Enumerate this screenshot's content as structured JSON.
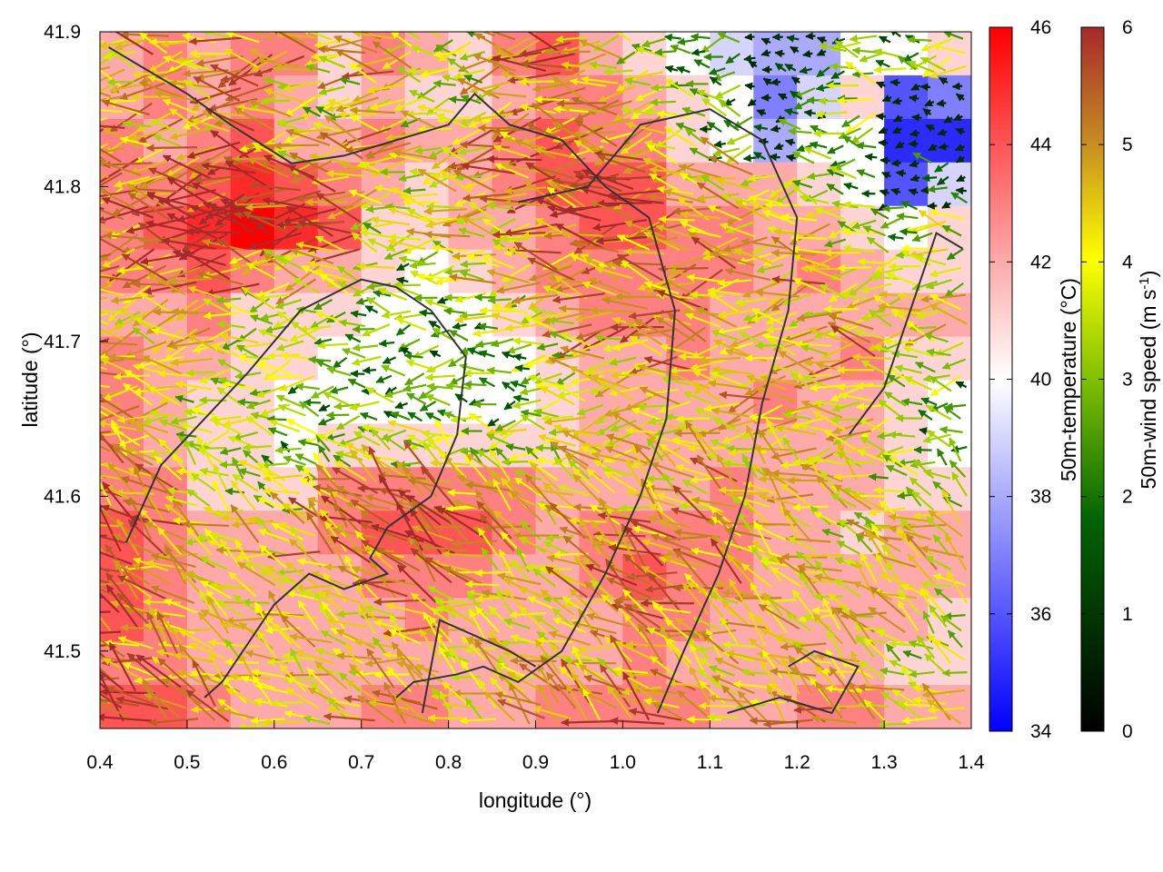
{
  "chart_data": {
    "type": "heatmap",
    "title": "",
    "xlabel": "longitude (°)",
    "ylabel": "latitude (°)",
    "xlim": [
      0.4,
      1.4
    ],
    "ylim": [
      41.45,
      41.9
    ],
    "xticks": [
      "0.4",
      "0.5",
      "0.6",
      "0.7",
      "0.8",
      "0.9",
      "1.0",
      "1.1",
      "1.2",
      "1.3",
      "1.4"
    ],
    "yticks": [
      "41.5",
      "41.6",
      "41.7",
      "41.8",
      "41.9"
    ],
    "grid": false,
    "temperature_colorbar": {
      "label": "50m-temperature (°C)",
      "range": [
        34,
        46
      ],
      "ticks": [
        "34",
        "36",
        "38",
        "40",
        "42",
        "44",
        "46"
      ],
      "colors": [
        "#0000ff",
        "#ffffff",
        "#ff0000"
      ]
    },
    "wind_colorbar": {
      "label_main": "50m-wind speed (m s",
      "label_sup": "-1",
      "label_end": ")",
      "range": [
        0,
        6
      ],
      "ticks": [
        "0",
        "1",
        "2",
        "3",
        "4",
        "5",
        "6"
      ],
      "colors": [
        "#000000",
        "#006400",
        "#80c000",
        "#ffff00",
        "#c89020",
        "#a52a2a"
      ]
    },
    "temperature_field": [
      [
        42,
        43,
        42,
        43,
        43,
        41,
        43,
        42,
        41,
        43,
        44,
        42,
        41,
        40,
        39,
        38,
        38,
        40,
        40,
        41
      ],
      [
        42,
        43,
        42,
        43,
        42,
        41,
        42,
        41,
        41,
        42,
        43,
        43,
        42,
        41,
        40,
        37,
        39,
        41,
        36,
        37
      ],
      [
        43,
        42,
        43,
        44,
        42,
        42,
        43,
        42,
        42,
        43,
        44,
        43,
        43,
        41,
        40,
        38,
        40,
        40,
        35,
        35
      ],
      [
        43,
        43,
        44,
        45,
        44,
        43,
        42,
        41,
        42,
        43,
        44,
        44,
        44,
        42,
        42,
        42,
        41,
        40,
        36,
        39
      ],
      [
        43,
        44,
        45,
        46,
        45,
        44,
        41,
        41,
        42,
        42,
        43,
        44,
        44,
        43,
        43,
        42,
        42,
        41,
        40,
        41
      ],
      [
        43,
        43,
        44,
        43,
        42,
        42,
        41,
        40,
        41,
        42,
        43,
        43,
        43,
        43,
        43,
        42,
        43,
        42,
        41,
        41
      ],
      [
        42,
        42,
        43,
        41,
        41,
        41,
        40,
        40,
        40,
        41,
        42,
        43,
        43,
        43,
        42,
        42,
        42,
        42,
        42,
        42
      ],
      [
        43,
        42,
        42,
        41,
        41,
        40,
        40,
        40,
        40,
        40,
        41,
        42,
        42,
        43,
        42,
        42,
        42,
        43,
        41,
        41
      ],
      [
        43,
        42,
        41,
        41,
        40,
        40,
        40,
        40,
        40,
        40,
        41,
        42,
        42,
        42,
        42,
        43,
        42,
        42,
        41,
        40
      ],
      [
        43,
        42,
        41,
        41,
        40,
        41,
        41,
        41,
        41,
        41,
        41,
        42,
        42,
        42,
        42,
        42,
        42,
        42,
        41,
        40
      ],
      [
        43,
        43,
        41,
        41,
        41,
        43,
        43,
        43,
        43,
        43,
        42,
        42,
        42,
        42,
        43,
        42,
        42,
        42,
        41,
        41
      ],
      [
        44,
        43,
        42,
        42,
        42,
        43,
        44,
        44,
        44,
        43,
        42,
        43,
        43,
        43,
        43,
        42,
        42,
        41,
        42,
        42
      ],
      [
        44,
        43,
        42,
        42,
        42,
        42,
        43,
        43,
        43,
        42,
        42,
        43,
        44,
        43,
        43,
        42,
        42,
        42,
        42,
        42
      ],
      [
        44,
        43,
        42,
        42,
        42,
        42,
        42,
        43,
        42,
        42,
        42,
        42,
        43,
        43,
        42,
        42,
        42,
        42,
        42,
        41
      ],
      [
        43,
        43,
        42,
        42,
        42,
        42,
        42,
        42,
        42,
        42,
        42,
        42,
        43,
        42,
        42,
        42,
        42,
        42,
        41,
        41
      ],
      [
        44,
        44,
        43,
        42,
        42,
        42,
        43,
        43,
        42,
        42,
        43,
        43,
        43,
        43,
        42,
        42,
        43,
        43,
        42,
        42
      ]
    ],
    "contours": [
      [
        [
          0.43,
          41.57
        ],
        [
          0.47,
          41.62
        ],
        [
          0.52,
          41.65
        ],
        [
          0.57,
          41.68
        ],
        [
          0.63,
          41.72
        ],
        [
          0.7,
          41.74
        ],
        [
          0.74,
          41.735
        ],
        [
          0.78,
          41.72
        ],
        [
          0.82,
          41.69
        ],
        [
          0.81,
          41.64
        ],
        [
          0.78,
          41.6
        ],
        [
          0.73,
          41.58
        ],
        [
          0.71,
          41.56
        ],
        [
          0.73,
          41.55
        ],
        [
          0.68,
          41.54
        ],
        [
          0.64,
          41.55
        ],
        [
          0.6,
          41.53
        ],
        [
          0.54,
          41.48
        ],
        [
          0.52,
          41.47
        ]
      ],
      [
        [
          0.74,
          41.47
        ],
        [
          0.76,
          41.48
        ],
        [
          0.81,
          41.485
        ],
        [
          0.84,
          41.49
        ],
        [
          0.88,
          41.48
        ],
        [
          0.93,
          41.5
        ],
        [
          0.98,
          41.55
        ],
        [
          1.02,
          41.6
        ],
        [
          1.05,
          41.65
        ],
        [
          1.06,
          41.72
        ],
        [
          1.03,
          41.78
        ],
        [
          0.98,
          41.8
        ],
        [
          0.93,
          41.83
        ],
        [
          0.87,
          41.84
        ],
        [
          0.83,
          41.86
        ],
        [
          0.8,
          41.84
        ],
        [
          0.74,
          41.83
        ],
        [
          0.68,
          41.82
        ],
        [
          0.62,
          41.815
        ],
        [
          0.55,
          41.84
        ],
        [
          0.5,
          41.86
        ],
        [
          0.44,
          41.88
        ],
        [
          0.41,
          41.89
        ]
      ],
      [
        [
          0.88,
          41.79
        ],
        [
          0.96,
          41.8
        ],
        [
          1.02,
          41.84
        ],
        [
          1.1,
          41.85
        ],
        [
          1.16,
          41.83
        ],
        [
          1.2,
          41.78
        ],
        [
          1.19,
          41.72
        ],
        [
          1.16,
          41.66
        ],
        [
          1.14,
          41.6
        ],
        [
          1.11,
          41.55
        ],
        [
          1.07,
          41.5
        ],
        [
          1.04,
          41.46
        ]
      ],
      [
        [
          1.26,
          41.64
        ],
        [
          1.3,
          41.67
        ],
        [
          1.33,
          41.72
        ],
        [
          1.36,
          41.77
        ],
        [
          1.39,
          41.76
        ]
      ],
      [
        [
          1.12,
          41.46
        ],
        [
          1.18,
          41.47
        ],
        [
          1.24,
          41.46
        ],
        [
          1.27,
          41.49
        ],
        [
          1.22,
          41.5
        ],
        [
          1.19,
          41.49
        ]
      ],
      [
        [
          0.77,
          41.46
        ],
        [
          0.79,
          41.52
        ],
        [
          0.83,
          41.51
        ],
        [
          0.87,
          41.5
        ],
        [
          0.9,
          41.49
        ]
      ]
    ]
  }
}
